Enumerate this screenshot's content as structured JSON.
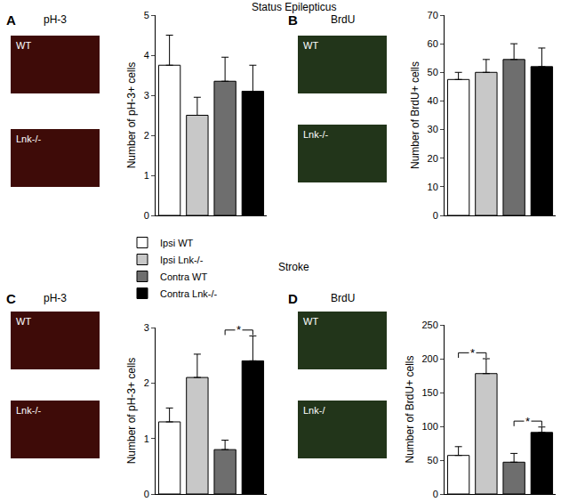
{
  "sections": [
    "Status Epilepticus",
    "Stroke"
  ],
  "chart_data": [
    {
      "panel": "A",
      "type": "bar",
      "image_title": "pH-3",
      "image_labels": [
        "WT",
        "Lnk-/-"
      ],
      "y_label": "Number of pH-3+ cells",
      "categories": [
        "Ipsi WT",
        "Ipsi Lnk-/-",
        "Contra WT",
        "Contra Lnk-/-"
      ],
      "colors": [
        "#ffffff",
        "#c8c8c8",
        "#6e6e6e",
        "#000000"
      ],
      "values": [
        3.75,
        2.5,
        3.35,
        3.1
      ],
      "errors": [
        0.75,
        0.45,
        0.6,
        0.65
      ],
      "ylim": [
        0,
        5
      ],
      "yticks": [
        0,
        1,
        2,
        3,
        4,
        5
      ],
      "tick_labels": "y",
      "legend": "left",
      "significance": []
    },
    {
      "panel": "B",
      "type": "bar",
      "image_title": "BrdU",
      "image_labels": [
        "WT",
        "Lnk-/-"
      ],
      "y_label": "Number of BrdU+ cells",
      "categories": [
        "Ipsi WT",
        "Ipsi Lnk-/-",
        "Contra WT",
        "Contra Lnk-/-"
      ],
      "colors": [
        "#ffffff",
        "#c8c8c8",
        "#6e6e6e",
        "#000000"
      ],
      "values": [
        47.5,
        50,
        54.5,
        52
      ],
      "errors": [
        2.5,
        4.5,
        5.5,
        6.5
      ],
      "ylim": [
        0,
        70
      ],
      "yticks": [
        0,
        10,
        20,
        30,
        40,
        50,
        60,
        70
      ],
      "tick_labels": "y",
      "significance": []
    },
    {
      "panel": "C",
      "type": "bar",
      "image_title": "pH-3",
      "image_labels": [
        "WT",
        "Lnk-/-"
      ],
      "y_label": "Number of pH-3+ cells",
      "categories": [
        "Ipsi WT",
        "Ipsi Lnk-/-",
        "Contra WT",
        "Contra Lnk-/-"
      ],
      "colors": [
        "#ffffff",
        "#c8c8c8",
        "#6e6e6e",
        "#000000"
      ],
      "values": [
        1.3,
        2.1,
        0.8,
        2.4
      ],
      "errors": [
        0.25,
        0.42,
        0.17,
        0.45
      ],
      "ylim": [
        0,
        3
      ],
      "yticks": [
        0,
        1,
        2,
        3
      ],
      "tick_labels": "y",
      "significance": [
        {
          "between": [
            2,
            3
          ],
          "label": "*"
        }
      ]
    },
    {
      "panel": "D",
      "type": "bar",
      "image_title": "BrdU",
      "image_labels": [
        "WT",
        "Lnk-/"
      ],
      "y_label": "Number of BrdU+ cells",
      "categories": [
        "Ipsi WT",
        "Ipsi Lnk-/-",
        "Contra WT",
        "Contra Lnk-/-"
      ],
      "colors": [
        "#ffffff",
        "#c8c8c8",
        "#6e6e6e",
        "#000000"
      ],
      "values": [
        57,
        178,
        47,
        91
      ],
      "errors": [
        13,
        22,
        13,
        8
      ],
      "ylim": [
        0,
        250
      ],
      "yticks": [
        0,
        50,
        100,
        150,
        200,
        250
      ],
      "tick_labels": "y",
      "significance": [
        {
          "between": [
            0,
            1
          ],
          "label": "*"
        },
        {
          "between": [
            2,
            3
          ],
          "label": "*"
        }
      ]
    }
  ]
}
